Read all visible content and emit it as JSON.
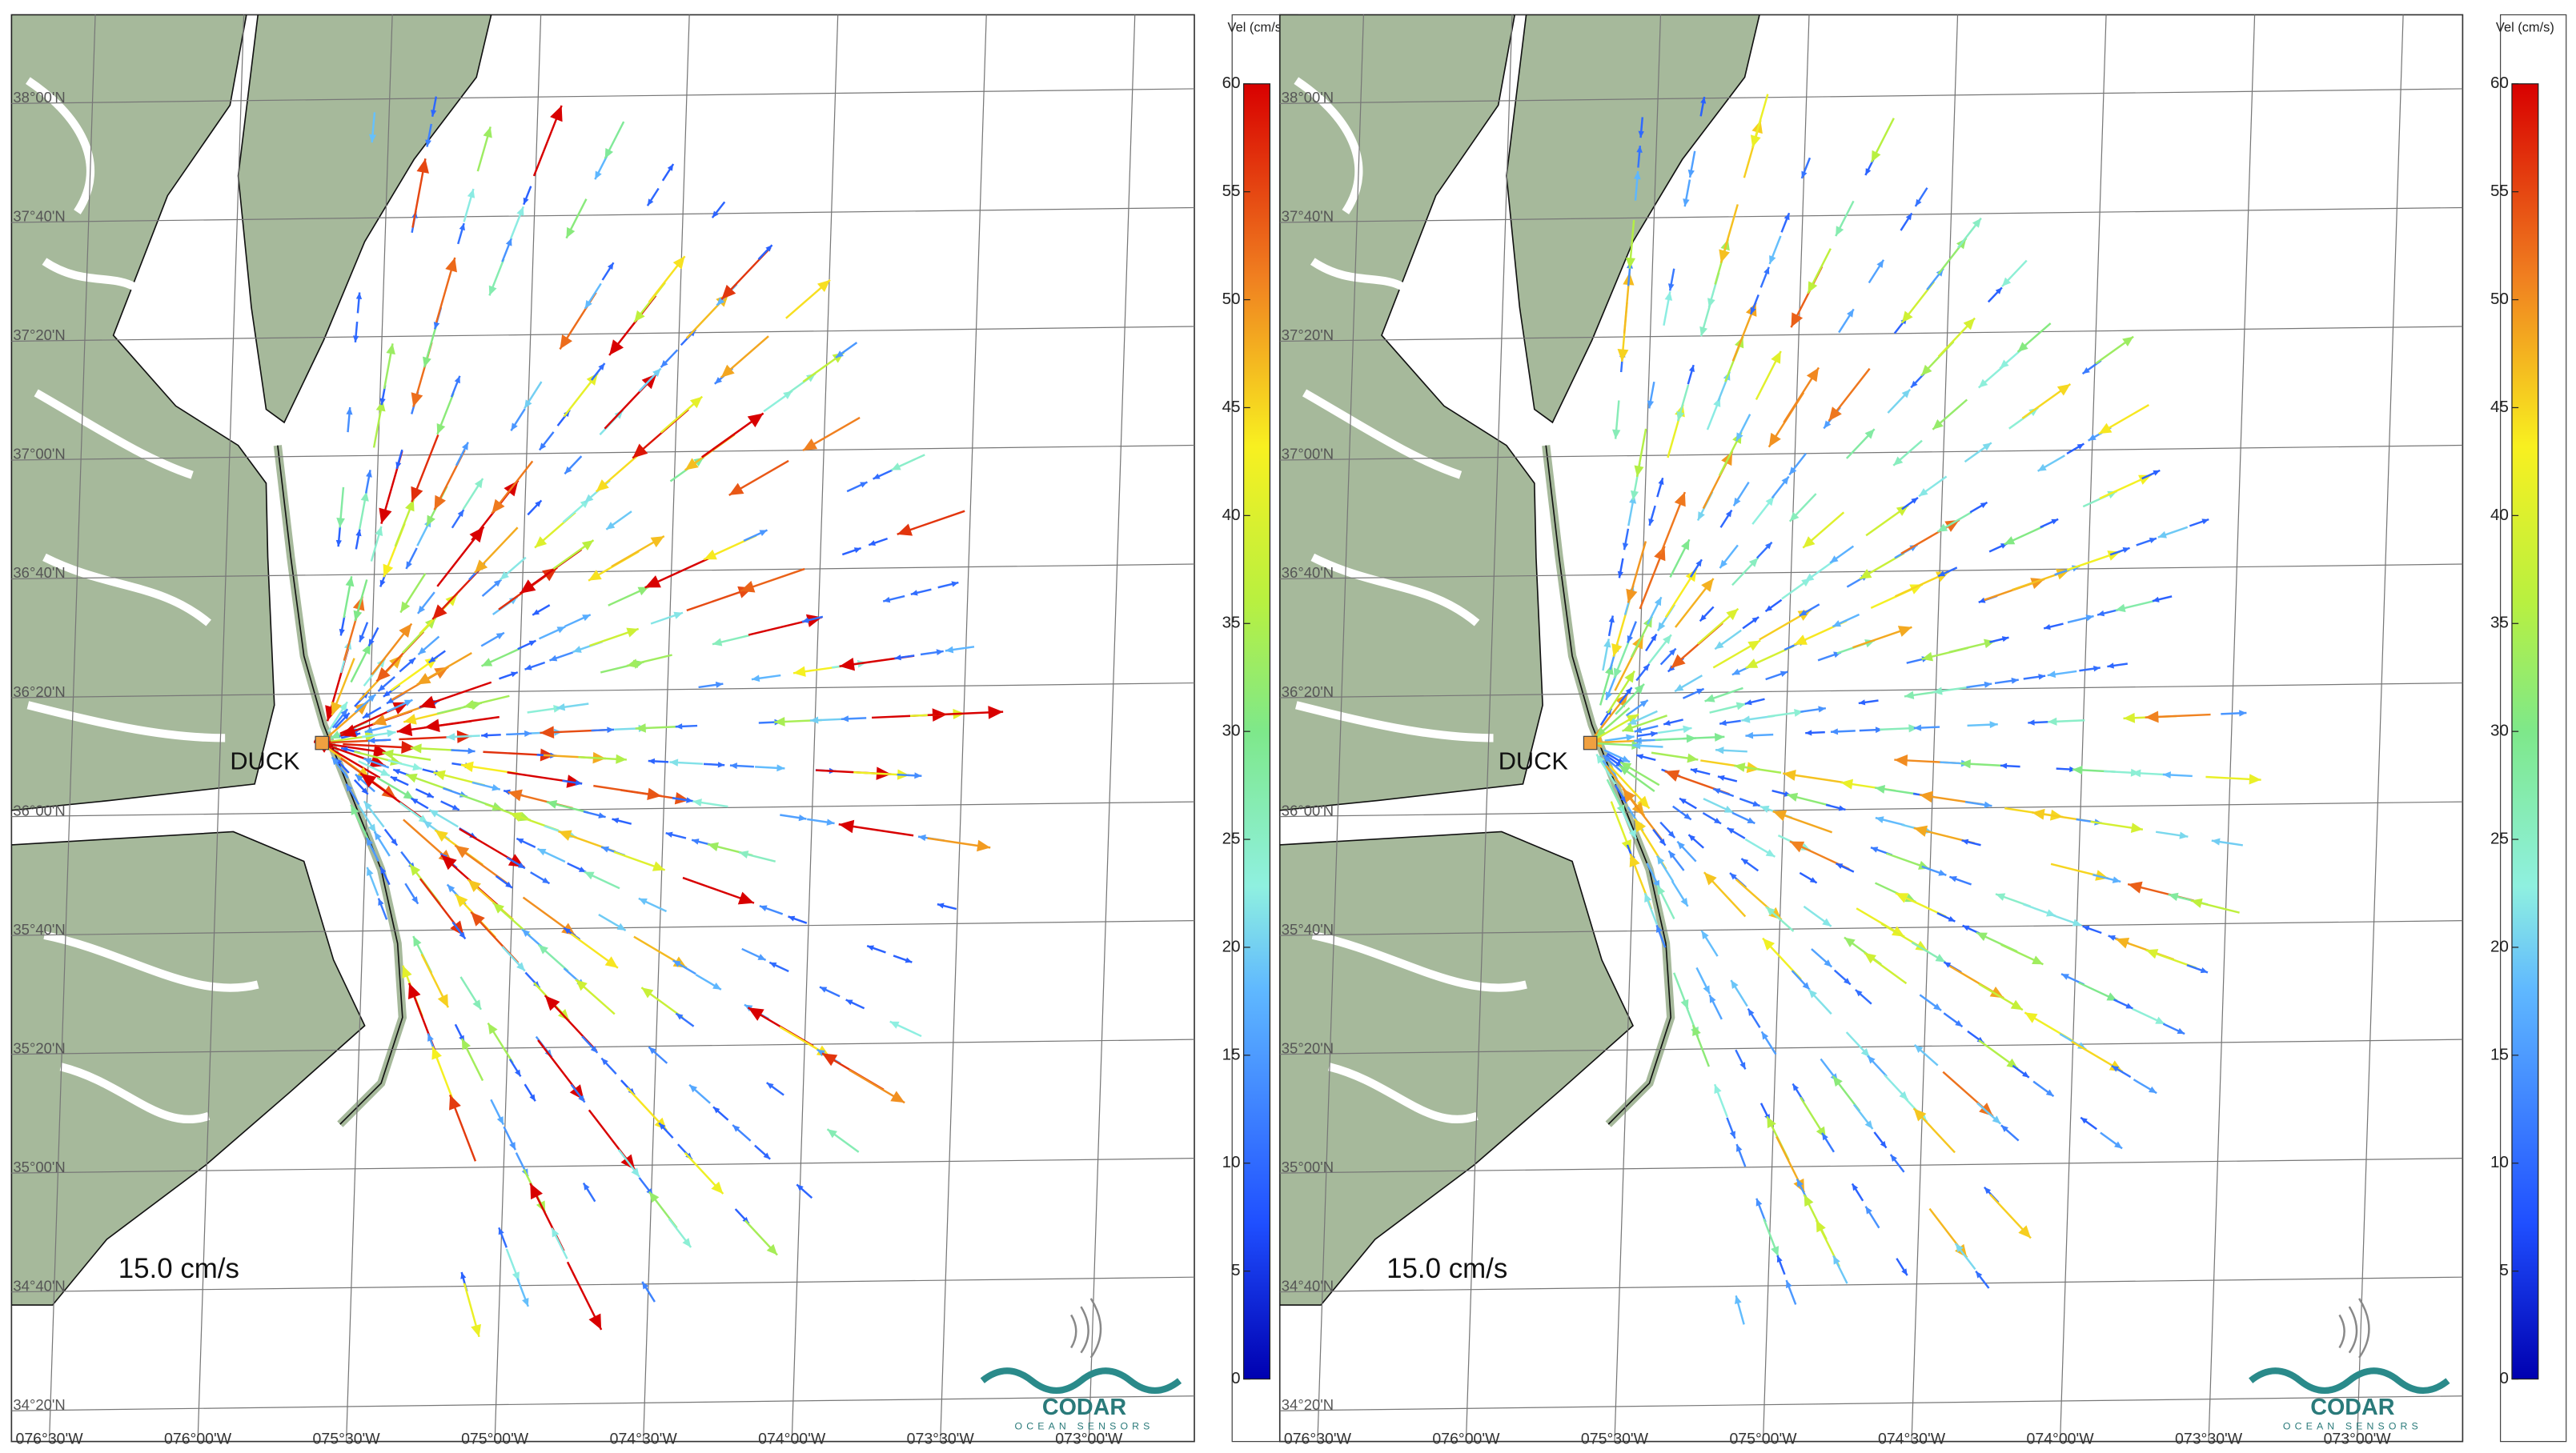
{
  "panels": [
    {
      "colorbar": {
        "title": "Vel (cm/s)",
        "ticks": [
          0,
          5,
          10,
          15,
          20,
          25,
          30,
          35,
          40,
          45,
          50,
          55,
          60
        ]
      },
      "lat_labels": [
        "38°00'N",
        "37°40'N",
        "37°20'N",
        "37°00'N",
        "36°40'N",
        "36°20'N",
        "36°00'N",
        "35°40'N",
        "35°20'N",
        "35°00'N",
        "34°40'N",
        "34°20'N"
      ],
      "lon_labels": [
        "076°30'W",
        "076°00'W",
        "075°30'W",
        "075°00'W",
        "074°30'W",
        "074°00'W",
        "073°30'W",
        "073°00'W"
      ],
      "site_label": "DUCK",
      "scale_label": "15.0 cm/s",
      "logo": {
        "name": "CODAR",
        "tagline": "OCEAN SENSORS"
      }
    },
    {
      "colorbar": {
        "title": "Vel (cm/s)",
        "ticks": [
          0,
          5,
          10,
          15,
          20,
          25,
          30,
          35,
          40,
          45,
          50,
          55,
          60
        ]
      },
      "lat_labels": [
        "38°00'N",
        "37°40'N",
        "37°20'N",
        "37°00'N",
        "36°40'N",
        "36°20'N",
        "36°00'N",
        "35°40'N",
        "35°20'N",
        "35°00'N",
        "34°40'N",
        "34°20'N"
      ],
      "lon_labels": [
        "076°30'W",
        "076°00'W",
        "075°30'W",
        "075°00'W",
        "074°30'W",
        "074°00'W",
        "073°30'W",
        "073°00'W"
      ],
      "site_label": "DUCK",
      "scale_label": "15.0 cm/s",
      "logo": {
        "name": "CODAR",
        "tagline": "OCEAN SENSORS"
      }
    }
  ]
}
